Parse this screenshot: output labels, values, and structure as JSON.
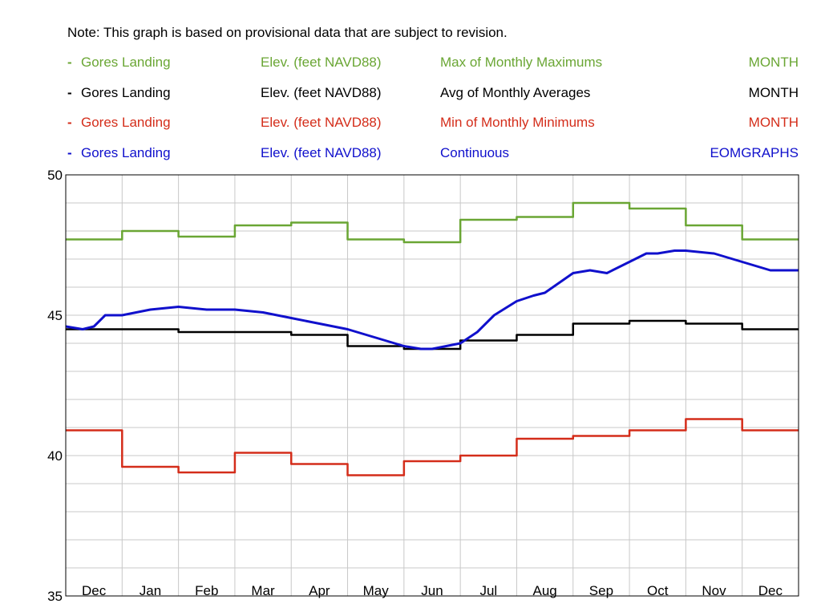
{
  "note": "Note: This graph is based on provisional data that are subject to revision.",
  "legend": [
    {
      "site": "Gores Landing",
      "parameter": "Elev. (feet NAVD88)",
      "statistic": "Max of Monthly Maximums",
      "period": "MONTH",
      "color": "#6aa634"
    },
    {
      "site": "Gores Landing",
      "parameter": "Elev. (feet NAVD88)",
      "statistic": "Avg of Monthly Averages",
      "period": "MONTH",
      "color": "#000000"
    },
    {
      "site": "Gores Landing",
      "parameter": "Elev. (feet NAVD88)",
      "statistic": "Min of Monthly Minimums",
      "period": "MONTH",
      "color": "#d42d1a"
    },
    {
      "site": "Gores Landing",
      "parameter": "Elev. (feet NAVD88)",
      "statistic": "Continuous",
      "period": "EOMGRAPHS",
      "color": "#1010cc"
    }
  ],
  "chart_data": {
    "type": "line",
    "categories": [
      "Dec",
      "Jan",
      "Feb",
      "Mar",
      "Apr",
      "May",
      "Jun",
      "Jul",
      "Aug",
      "Sep",
      "Oct",
      "Nov",
      "Dec"
    ],
    "ylim": [
      35,
      50
    ],
    "yticks": [
      "35",
      "40",
      "45",
      "50"
    ],
    "grid": true,
    "series": [
      {
        "name": "Max of Monthly Maximums",
        "color": "#6aa634",
        "step": true,
        "values": [
          47.7,
          48.0,
          47.8,
          48.2,
          48.3,
          47.7,
          47.6,
          48.4,
          48.5,
          49.0,
          48.8,
          48.2,
          47.7
        ]
      },
      {
        "name": "Avg of Monthly Averages",
        "color": "#000000",
        "step": true,
        "values": [
          44.5,
          44.5,
          44.4,
          44.4,
          44.3,
          43.9,
          43.8,
          44.1,
          44.3,
          44.7,
          44.8,
          44.7,
          44.5
        ]
      },
      {
        "name": "Min of Monthly Minimums",
        "color": "#d42d1a",
        "step": true,
        "values": [
          40.9,
          39.6,
          39.4,
          40.1,
          39.7,
          39.3,
          39.8,
          40.0,
          40.6,
          40.7,
          40.9,
          41.3,
          40.9
        ]
      },
      {
        "name": "Continuous",
        "color": "#1010cc",
        "step": false,
        "x": [
          0,
          0.3,
          0.5,
          0.7,
          1.0,
          1.5,
          2.0,
          2.5,
          3.0,
          3.5,
          4.0,
          4.5,
          5.0,
          5.5,
          6.0,
          6.3,
          6.5,
          7.0,
          7.3,
          7.6,
          8.0,
          8.3,
          8.5,
          9.0,
          9.3,
          9.6,
          10.0,
          10.3,
          10.5,
          10.8,
          11.0,
          11.5,
          12.0,
          12.5,
          13.0
        ],
        "values": [
          44.6,
          44.5,
          44.6,
          45.0,
          45.0,
          45.2,
          45.3,
          45.2,
          45.2,
          45.1,
          44.9,
          44.7,
          44.5,
          44.2,
          43.9,
          43.8,
          43.8,
          44.0,
          44.4,
          45.0,
          45.5,
          45.7,
          45.8,
          46.5,
          46.6,
          46.5,
          46.9,
          47.2,
          47.2,
          47.3,
          47.3,
          47.2,
          46.9,
          46.6,
          46.6
        ]
      }
    ]
  }
}
